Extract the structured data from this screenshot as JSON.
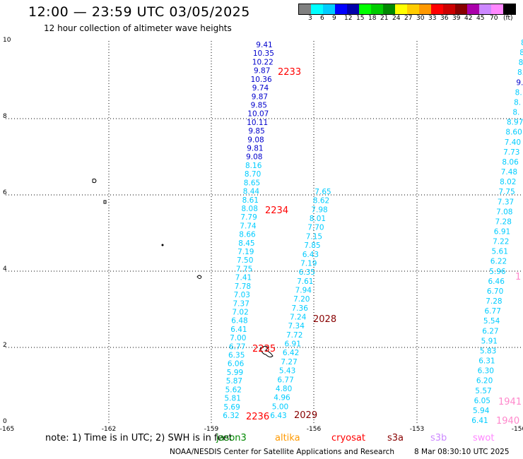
{
  "header": {
    "title": "12:00 — 23:59 UTC 03/05/2025",
    "subtitle": "12 hour collection of altimeter wave heights"
  },
  "colorbar": {
    "unit_label": "(ft)",
    "colors": [
      "#808080",
      "#00ffff",
      "#00ccff",
      "#0000ff",
      "#0000aa",
      "#00ff00",
      "#00cc00",
      "#008800",
      "#ffff00",
      "#ffcc00",
      "#ff9900",
      "#ff0000",
      "#cc0000",
      "#880000",
      "#aa00aa",
      "#cc88ff",
      "#ff88ff",
      "#000000"
    ],
    "labels": [
      "3",
      "6",
      "9",
      "12",
      "15",
      "18",
      "21",
      "24",
      "27",
      "30",
      "33",
      "36",
      "39",
      "42",
      "45",
      "70"
    ]
  },
  "axes": {
    "xlabels": [
      "-165",
      "-162",
      "-159",
      "-156",
      "-153",
      "-150"
    ],
    "ylabels": [
      "0",
      "2",
      "4",
      "6",
      "8",
      "10"
    ]
  },
  "tracks": [
    {
      "id": "west",
      "values": [
        "9.41",
        "10.35",
        "10.22",
        "9.87",
        "10.36",
        "9.74",
        "9.87",
        "9.85",
        "10.07",
        "10.11",
        "9.85",
        "9.08",
        "9.81",
        "9.08",
        "8.16",
        "8.70",
        "8.65",
        "8.44",
        "8.61",
        "8.08",
        "7.79",
        "7.74",
        "8.66",
        "8.45",
        "7.19",
        "7.50",
        "7.75",
        "7.41",
        "7.78",
        "7.03",
        "7.37",
        "7.02",
        "6.48",
        "6.41",
        "7.00",
        "6.77",
        "6.35",
        "6.06",
        "5.99",
        "5.87",
        "5.62",
        "5.81",
        "5.69",
        "6.32"
      ]
    },
    {
      "id": "middle",
      "values": [
        "7.65",
        "8.62",
        "7.98",
        "8.01",
        "7.70",
        "7.15",
        "7.85",
        "6.43",
        "7.19",
        "6.35",
        "7.61",
        "7.94",
        "7.20",
        "7.36",
        "7.24",
        "7.34",
        "7.72",
        "6.91",
        "6.42",
        "7.27",
        "5.43",
        "6.77",
        "4.80",
        "4.96",
        "5.00",
        "6.43"
      ]
    },
    {
      "id": "east",
      "values": [
        "8.",
        "8.",
        "8.",
        "8.",
        "9.",
        "8.",
        "8.",
        "8.",
        "8.97",
        "8.60",
        "7.40",
        "7.73",
        "8.06",
        "7.48",
        "8.02",
        "7.75",
        "7.37",
        "7.08",
        "7.28",
        "6.91",
        "7.22",
        "5.61",
        "6.22",
        "5.96",
        "6.46",
        "6.70",
        "7.28",
        "6.77",
        "5.54",
        "6.27",
        "5.91",
        "5.83",
        "6.31",
        "6.30",
        "6.20",
        "5.57",
        "6.05",
        "5.94",
        "6.41"
      ]
    }
  ],
  "pass_labels": [
    {
      "text": "2233",
      "color": "#ff0000"
    },
    {
      "text": "2234",
      "color": "#ff0000"
    },
    {
      "text": "2028",
      "color": "#880000"
    },
    {
      "text": "2235",
      "color": "#ff0000"
    },
    {
      "text": "2236",
      "color": "#ff0000"
    },
    {
      "text": "2029",
      "color": "#880000"
    },
    {
      "text": "1941",
      "color": "#ff88cc"
    },
    {
      "text": "1940",
      "color": "#ff88cc"
    },
    {
      "text": "1",
      "color": "#ff88cc"
    }
  ],
  "note": {
    "prefix": "note:  1) Time is in UTC;  2) SWH is in feet",
    "satellites": [
      {
        "name": "jason3",
        "color": "#008800"
      },
      {
        "name": "altika",
        "color": "#ff9900"
      },
      {
        "name": "cryosat",
        "color": "#ff0000"
      },
      {
        "name": "s3a",
        "color": "#880000"
      },
      {
        "name": "s3b",
        "color": "#cc88ff"
      },
      {
        "name": "swot",
        "color": "#ff88ff"
      }
    ]
  },
  "footer": {
    "credit": "NOAA/NESDIS Center for Satellite Applications and Research",
    "timestamp": "8 Mar 08:30:10 UTC 2025"
  }
}
